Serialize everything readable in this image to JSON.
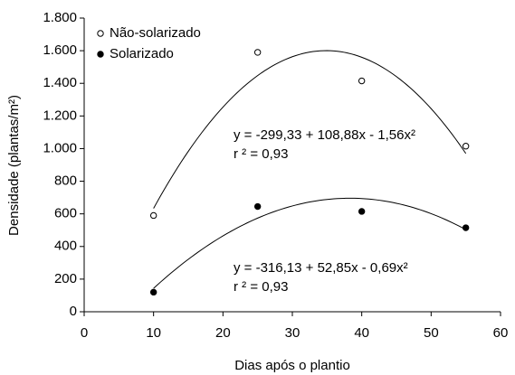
{
  "chart_data": {
    "type": "scatter",
    "xlabel": "Dias após o plantio",
    "ylabel": "Densidade (plantas/m²)",
    "xlim": [
      0,
      60
    ],
    "xticks": [
      0,
      10,
      20,
      30,
      40,
      50,
      60
    ],
    "ylim": [
      0,
      1800
    ],
    "yticks": [
      0,
      200,
      400,
      600,
      800,
      {
        "value": 1000,
        "label": "1.000"
      },
      {
        "value": 1200,
        "label": "1.200"
      },
      {
        "value": 1400,
        "label": "1.400"
      },
      {
        "value": 1600,
        "label": "1.600"
      },
      {
        "value": 1800,
        "label": "1.800"
      }
    ],
    "legend": "top-left",
    "series": [
      {
        "name": "Não-solarizado",
        "color": "#000000",
        "marker": "open",
        "x": [
          10,
          25,
          40,
          55
        ],
        "values": [
          590,
          1590,
          1415,
          1015
        ],
        "fit": [
          -299.33,
          108.88,
          -1.56
        ],
        "equation": "y = -299,33 + 108,88x - 1,56x²",
        "r2": "r ² = 0,93"
      },
      {
        "name": "Solarizado",
        "color": "#000000",
        "marker": "filled",
        "x": [
          10,
          25,
          40,
          55
        ],
        "values": [
          120,
          645,
          615,
          515
        ],
        "fit": [
          -316.13,
          52.85,
          -0.69
        ],
        "equation": "y = -316,13 + 52,85x - 0,69x²",
        "r2": "r ² = 0,93"
      }
    ]
  }
}
